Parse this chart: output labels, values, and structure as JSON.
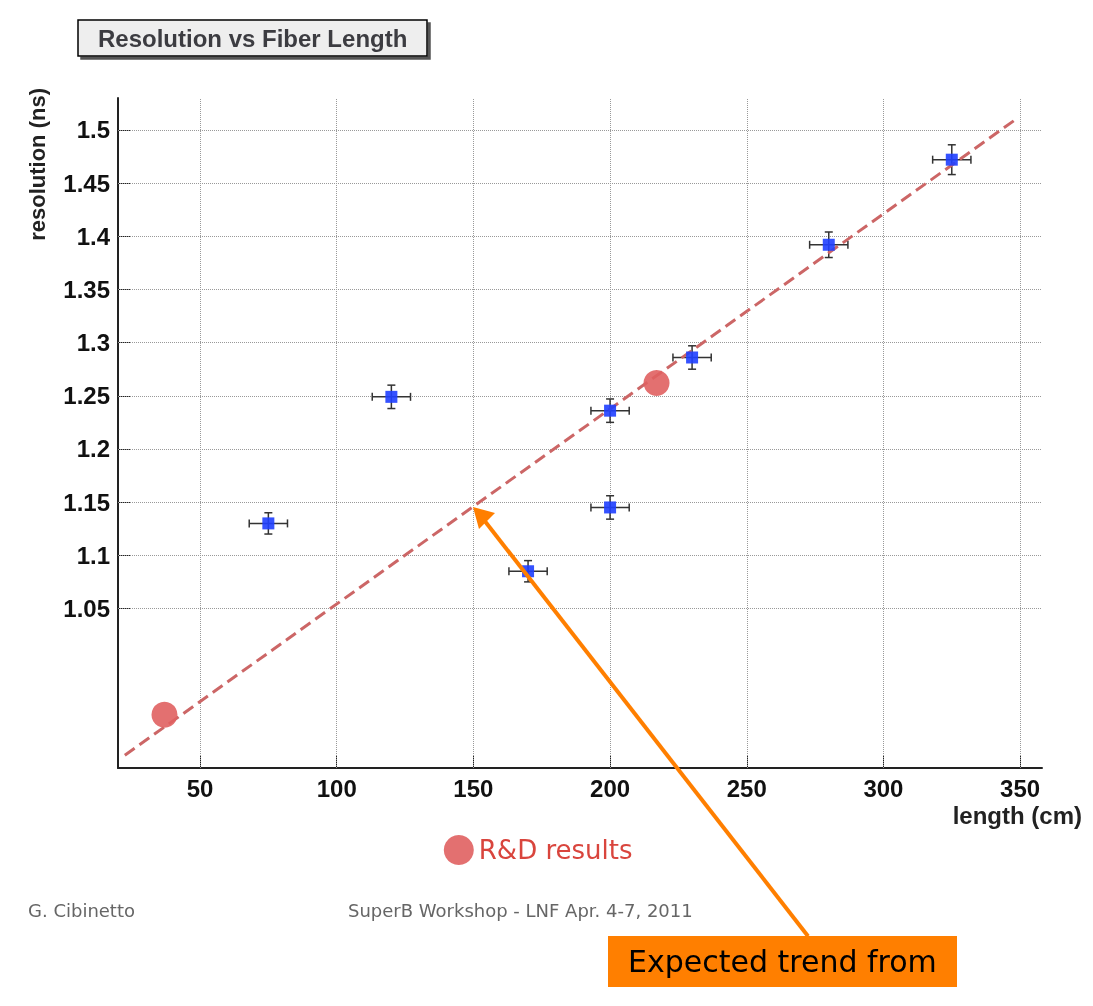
{
  "chart_data": {
    "type": "scatter",
    "title": "Resolution vs Fiber Length",
    "xlabel": "length (cm)",
    "ylabel": "resolution (ns)",
    "xlim": [
      20,
      358
    ],
    "ylim": [
      0.9,
      1.53
    ],
    "xticks": [
      50,
      100,
      150,
      200,
      250,
      300,
      350
    ],
    "yticks": [
      1.05,
      1.1,
      1.15,
      1.2,
      1.25,
      1.3,
      1.35,
      1.4,
      1.45,
      1.5
    ],
    "grid": true,
    "legend": "bottom",
    "series": [
      {
        "color": "#1f3fff",
        "marker": "square",
        "x": [
          75,
          120,
          170,
          200,
          200,
          230,
          280,
          325
        ],
        "values": [
          1.13,
          1.249,
          1.085,
          1.236,
          1.145,
          1.286,
          1.392,
          1.472
        ],
        "errors": [
          0.01,
          0.011,
          0.01,
          0.011,
          0.011,
          0.011,
          0.012,
          0.014
        ],
        "xerrors": [
          7,
          7,
          7,
          7,
          7,
          7,
          7,
          7
        ]
      },
      {
        "name": "R&D results",
        "color": "#e06060",
        "marker": "circle",
        "x": [
          217,
          37
        ],
        "values": [
          1.262,
          0.95
        ]
      },
      {
        "type": "line",
        "color": "#cc6666",
        "marker": "none",
        "line_style": "dashed",
        "x": [
          22.5,
          349
        ],
        "values": [
          0.912,
          1.511
        ]
      }
    ],
    "annotations": [
      "G. Cibinetto",
      "SuperB Workshop - LNF Apr. 4-7, 2011",
      "Expected trend from"
    ]
  }
}
